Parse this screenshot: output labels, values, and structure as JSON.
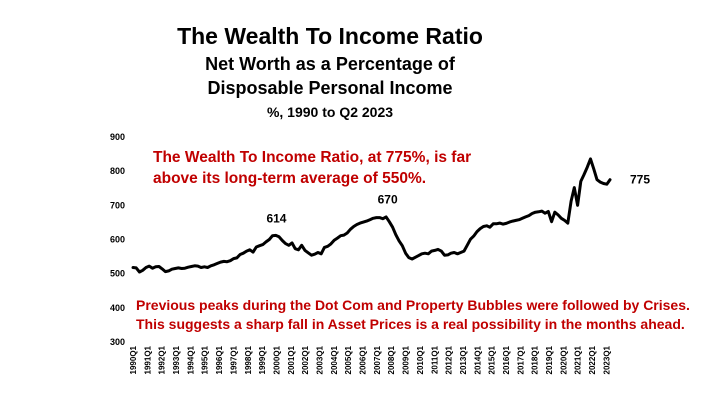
{
  "title": "The Wealth To Income Ratio",
  "subtitle_line1": "Net Worth as a Percentage of",
  "subtitle_line2": "Disposable Personal Income",
  "subtitle_line3": "%, 1990 to Q2 2023",
  "annotation_top_line1": "The Wealth To Income Ratio, at 775%, is far",
  "annotation_top_line2": "above its long-term average of 550%.",
  "annotation_bottom_line1": "Previous peaks during the Dot Com and Property Bubbles were followed by Crises.",
  "annotation_bottom_line2": "This suggests a sharp fall in Asset Prices is a real possibility in the months ahead.",
  "colors": {
    "line": "#000000",
    "annotation": "#c00000"
  },
  "chart_data": {
    "type": "line",
    "title": "The Wealth To Income Ratio",
    "xlabel": "",
    "ylabel": "",
    "ylim": [
      300,
      900
    ],
    "yticks": [
      300,
      400,
      500,
      600,
      700,
      800,
      900
    ],
    "grid": false,
    "legend": "none",
    "xtick_labels": [
      "1990Q1",
      "1991Q1",
      "1992Q1",
      "1993Q1",
      "1994Q1",
      "1995Q1",
      "1996Q1",
      "1997Q1",
      "1998Q1",
      "1999Q1",
      "2000Q1",
      "2001Q1",
      "2002Q1",
      "2003Q1",
      "2004Q1",
      "2005Q1",
      "2006Q1",
      "2007Q1",
      "2008Q1",
      "2009Q1",
      "2010Q1",
      "2011Q1",
      "2012Q1",
      "2013Q1",
      "2014Q1",
      "2015Q1",
      "2016Q1",
      "2017Q1",
      "2018Q1",
      "2019Q1",
      "2020Q1",
      "2021Q1",
      "2022Q1",
      "2023Q1"
    ],
    "x_start": "1990Q1",
    "x_end": "2023Q2",
    "values": [
      518,
      517,
      505,
      510,
      518,
      522,
      516,
      520,
      521,
      514,
      506,
      508,
      513,
      515,
      517,
      515,
      516,
      519,
      521,
      523,
      522,
      518,
      520,
      518,
      523,
      526,
      530,
      534,
      536,
      535,
      538,
      544,
      546,
      556,
      560,
      566,
      570,
      563,
      578,
      582,
      585,
      593,
      600,
      611,
      612,
      608,
      597,
      588,
      583,
      590,
      573,
      570,
      583,
      568,
      561,
      554,
      557,
      562,
      558,
      577,
      580,
      587,
      598,
      604,
      611,
      613,
      619,
      630,
      638,
      644,
      648,
      651,
      654,
      658,
      662,
      664,
      664,
      661,
      666,
      652,
      636,
      614,
      596,
      582,
      560,
      547,
      543,
      548,
      553,
      558,
      560,
      558,
      566,
      568,
      571,
      566,
      554,
      555,
      560,
      562,
      558,
      562,
      566,
      583,
      601,
      610,
      623,
      632,
      638,
      640,
      636,
      646,
      646,
      648,
      645,
      647,
      651,
      654,
      656,
      658,
      662,
      666,
      670,
      676,
      680,
      681,
      683,
      677,
      682,
      652,
      680,
      672,
      662,
      656,
      648,
      712,
      752,
      700,
      770,
      790,
      812,
      836,
      806,
      775,
      768,
      764,
      762,
      775
    ]
  },
  "data_labels": [
    {
      "x": "2000Q1",
      "value": 614,
      "text": "614"
    },
    {
      "x": "2007Q4",
      "value": 670,
      "text": "670"
    },
    {
      "x": "2023Q2",
      "value": 775,
      "text": "775"
    }
  ]
}
